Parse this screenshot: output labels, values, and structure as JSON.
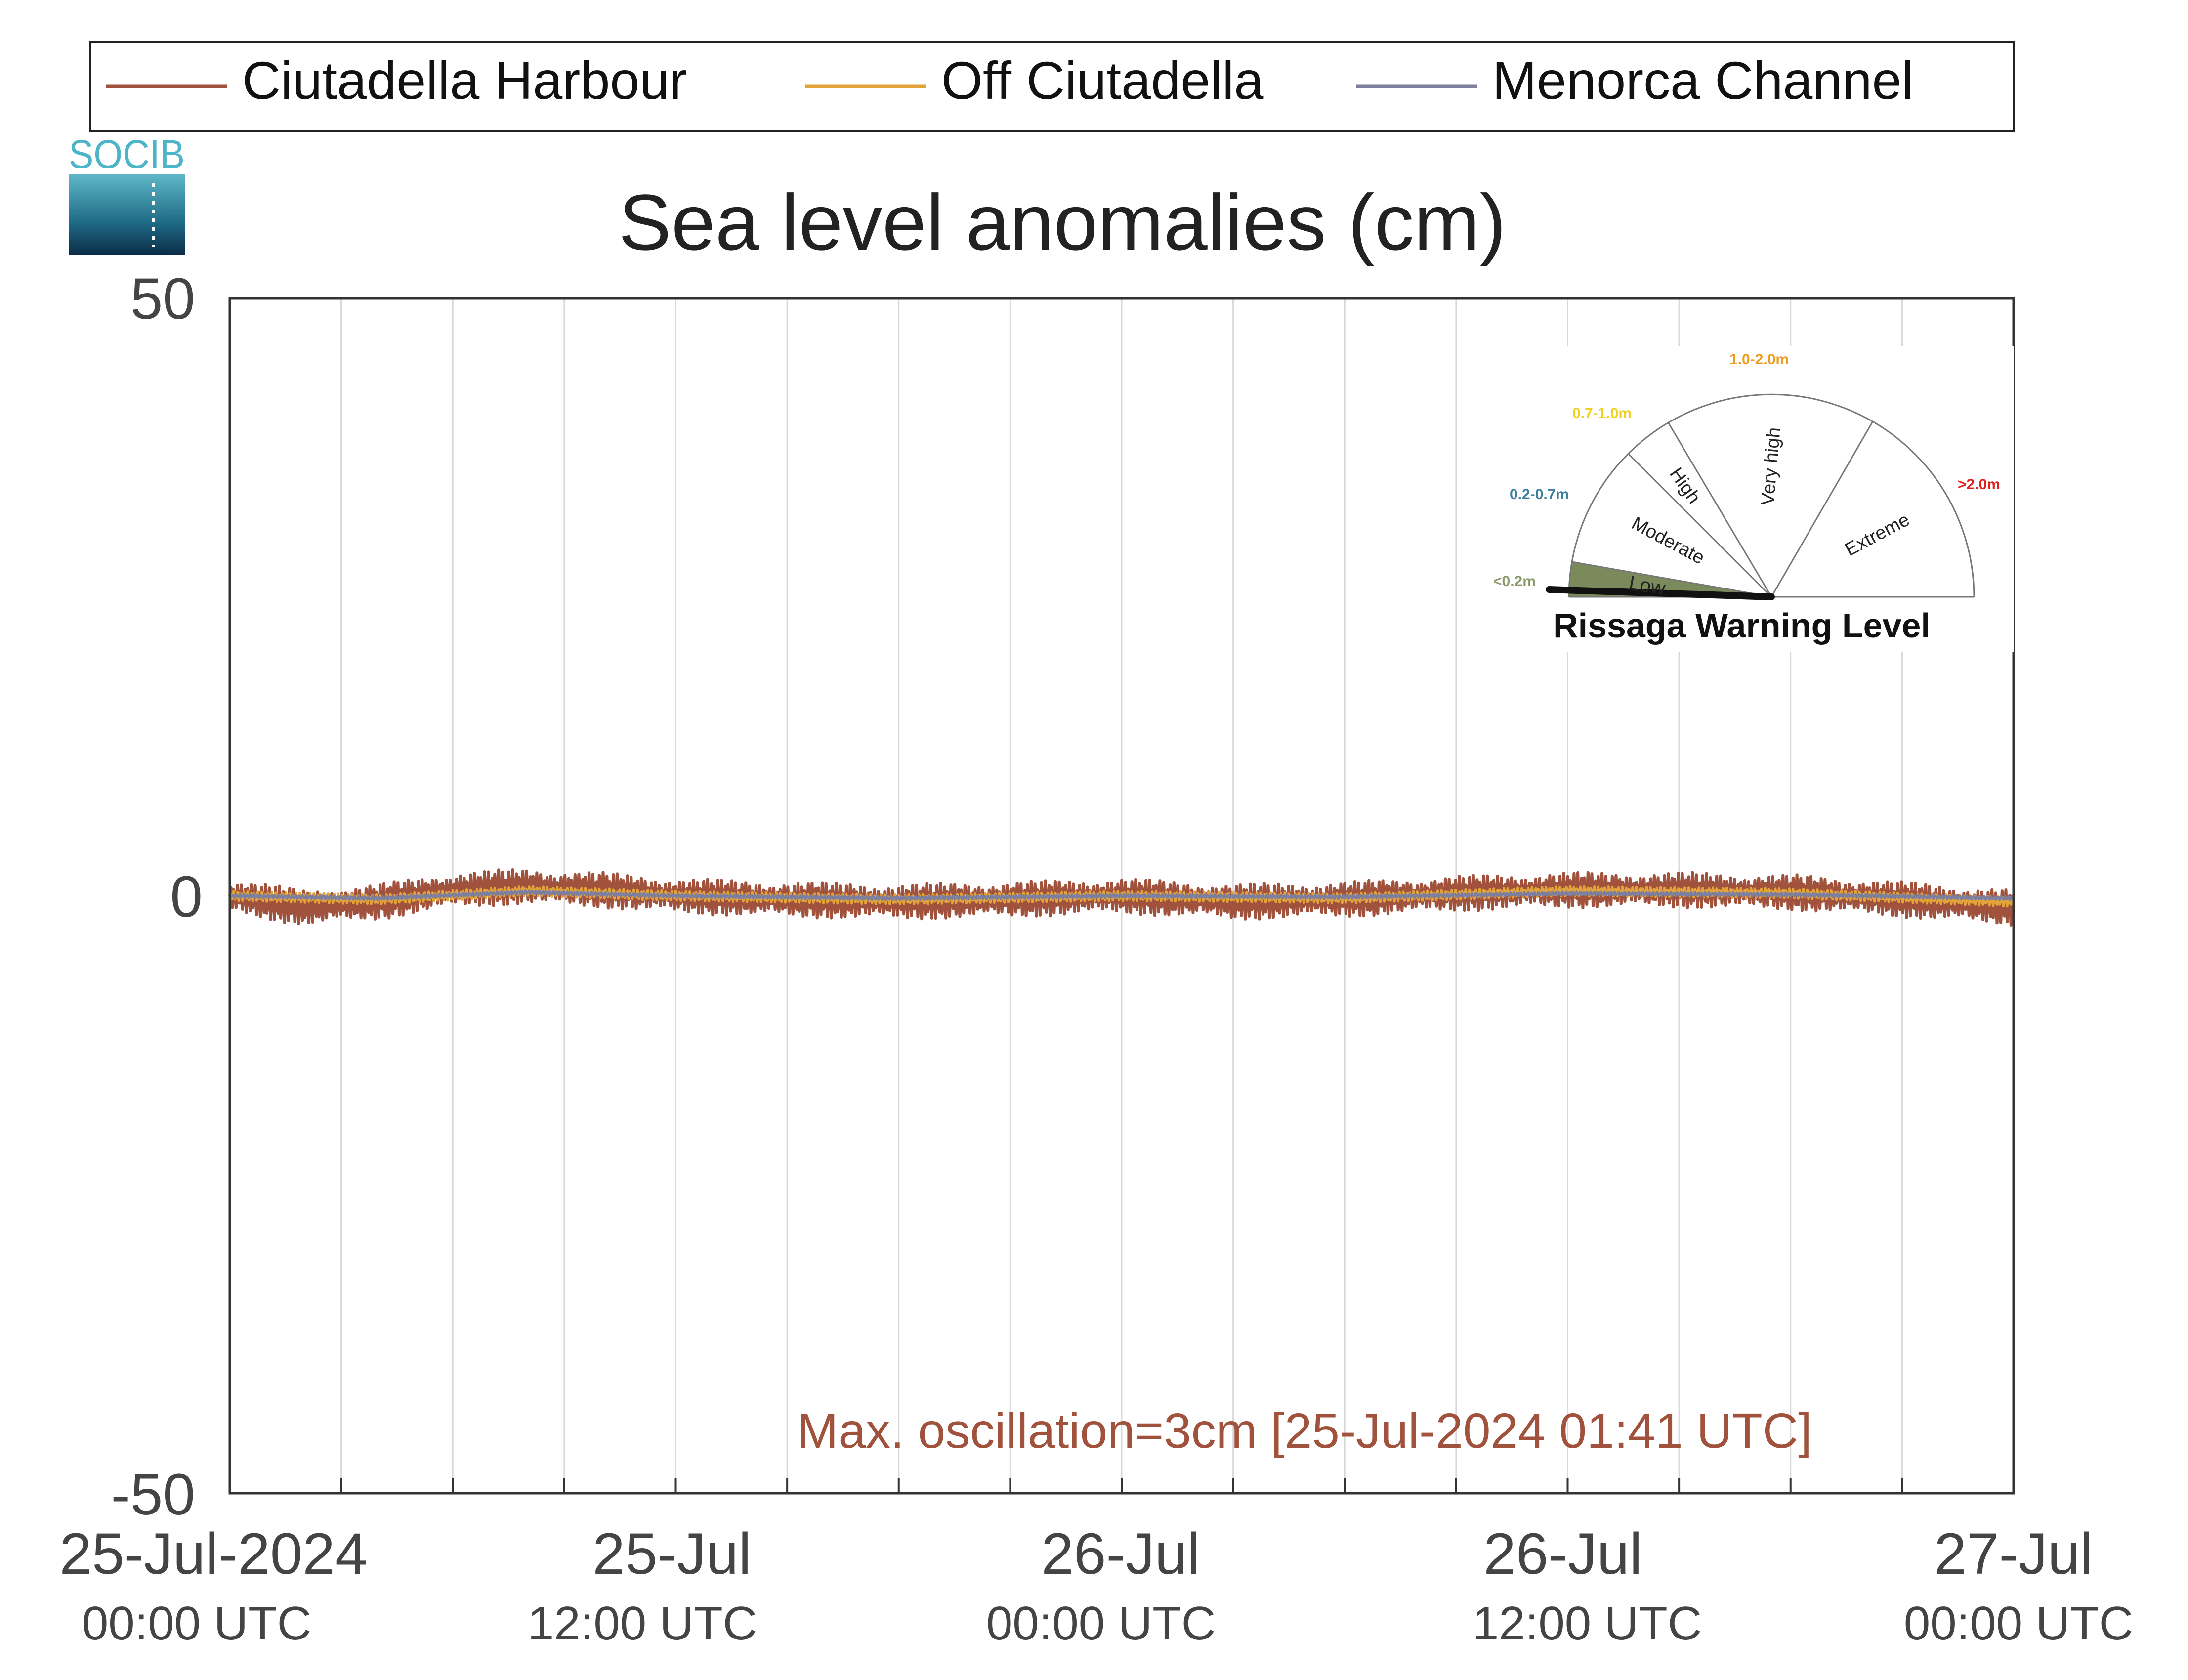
{
  "logo_text": "SOCIB",
  "chart_data": {
    "type": "line",
    "title": "Sea level anomalies (cm)",
    "xlabel": "",
    "ylabel": "",
    "ylim": [
      -50,
      50
    ],
    "yticks": [
      "50",
      "0",
      "-50"
    ],
    "xlim": [
      "2024-07-25T00:00",
      "2024-07-27T00:00"
    ],
    "xtick_labels": [
      {
        "date": "25-Jul-2024",
        "time": "00:00 UTC"
      },
      {
        "date": "25-Jul",
        "time": "12:00 UTC"
      },
      {
        "date": "26-Jul",
        "time": "00:00 UTC"
      },
      {
        "date": "26-Jul",
        "time": "12:00 UTC"
      },
      {
        "date": "27-Jul",
        "time": "00:00 UTC"
      }
    ],
    "grid": "vertical every 3 hours",
    "legend_position": "top, above plot",
    "series": [
      {
        "name": "Ciutadella Harbour",
        "color": "#a0523d",
        "x": [
          "2024-07-25T00:00",
          "2024-07-25T02:00",
          "2024-07-25T04:00",
          "2024-07-25T06:00",
          "2024-07-25T08:00",
          "2024-07-25T10:00",
          "2024-07-25T12:00",
          "2024-07-25T15:00",
          "2024-07-25T18:00",
          "2024-07-25T21:00",
          "2024-07-26T00:00",
          "2024-07-26T03:00",
          "2024-07-26T06:00",
          "2024-07-26T09:00",
          "2024-07-26T12:00",
          "2024-07-26T15:00",
          "2024-07-26T18:00",
          "2024-07-26T21:00",
          "2024-07-27T00:00"
        ],
        "y": [
          0,
          -1,
          -0.5,
          0.5,
          0.8,
          0.5,
          0,
          -0.3,
          -0.5,
          -0.3,
          0,
          -0.5,
          -0.3,
          0.2,
          0.5,
          0.5,
          0.3,
          -0.3,
          -1
        ],
        "oscillation_cm": 1.5
      },
      {
        "name": "Off Ciutadella",
        "color": "#e3a33b",
        "x": [
          "2024-07-25T00:00",
          "2024-07-25T04:00",
          "2024-07-25T08:00",
          "2024-07-25T12:00",
          "2024-07-25T18:00",
          "2024-07-26T00:00",
          "2024-07-26T06:00",
          "2024-07-26T12:00",
          "2024-07-26T18:00",
          "2024-07-27T00:00"
        ],
        "y": [
          0,
          -0.3,
          0.4,
          0,
          -0.3,
          0,
          -0.2,
          0.4,
          0.2,
          -0.5
        ],
        "oscillation_cm": 0.4
      },
      {
        "name": "Menorca Channel",
        "color": "#7d7f9e",
        "x": [
          "2024-07-25T00:00",
          "2024-07-25T04:00",
          "2024-07-25T08:00",
          "2024-07-25T12:00",
          "2024-07-25T18:00",
          "2024-07-26T00:00",
          "2024-07-26T06:00",
          "2024-07-26T12:00",
          "2024-07-26T18:00",
          "2024-07-27T00:00"
        ],
        "y": [
          0,
          -0.2,
          0.3,
          0,
          -0.2,
          0,
          -0.1,
          0.2,
          0.1,
          -0.2
        ],
        "oscillation_cm": 0.15
      }
    ],
    "annotation": "Max. oscillation=3cm [25-Jul-2024 01:41 UTC]"
  },
  "rissaga_gauge": {
    "title": "Rissaga Warning Level",
    "current_level": "Low",
    "levels": [
      {
        "name": "Low",
        "range": "<0.2m",
        "color": "#8a9a6a"
      },
      {
        "name": "Moderate",
        "range": "0.2-0.7m",
        "color": "#3c7fa0"
      },
      {
        "name": "High",
        "range": "0.7-1.0m",
        "color": "#f0d020"
      },
      {
        "name": "Very high",
        "range": "1.0-2.0m",
        "color": "#f09a1e"
      },
      {
        "name": "Extreme",
        "range": ">2.0m",
        "color": "#e02020"
      }
    ]
  }
}
